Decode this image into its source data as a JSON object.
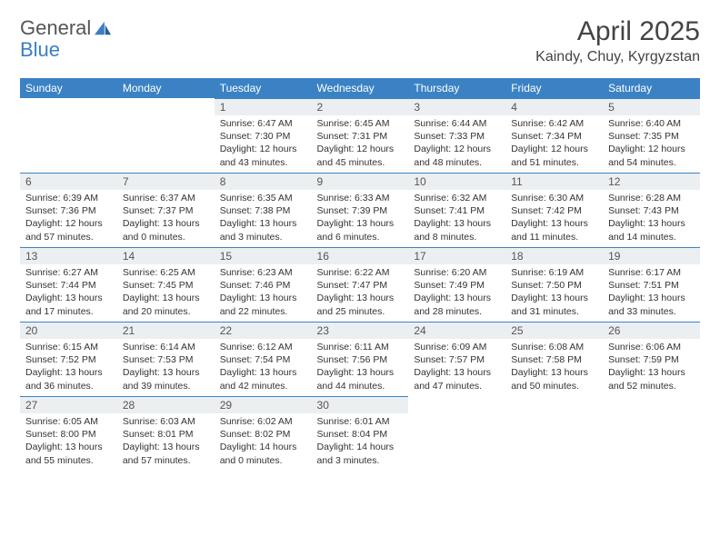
{
  "logo": {
    "part1": "General",
    "part2": "Blue"
  },
  "title": "April 2025",
  "location": "Kaindy, Chuy, Kyrgyzstan",
  "colors": {
    "header_bg": "#3b82c4",
    "daynum_bg": "#eceff1",
    "logo_blue": "#3b7fc4",
    "logo_grey": "#555555",
    "text": "#333333"
  },
  "weekdays": [
    "Sunday",
    "Monday",
    "Tuesday",
    "Wednesday",
    "Thursday",
    "Friday",
    "Saturday"
  ],
  "weeks": [
    [
      null,
      null,
      {
        "n": "1",
        "sr": "Sunrise: 6:47 AM",
        "ss": "Sunset: 7:30 PM",
        "dl": "Daylight: 12 hours and 43 minutes."
      },
      {
        "n": "2",
        "sr": "Sunrise: 6:45 AM",
        "ss": "Sunset: 7:31 PM",
        "dl": "Daylight: 12 hours and 45 minutes."
      },
      {
        "n": "3",
        "sr": "Sunrise: 6:44 AM",
        "ss": "Sunset: 7:33 PM",
        "dl": "Daylight: 12 hours and 48 minutes."
      },
      {
        "n": "4",
        "sr": "Sunrise: 6:42 AM",
        "ss": "Sunset: 7:34 PM",
        "dl": "Daylight: 12 hours and 51 minutes."
      },
      {
        "n": "5",
        "sr": "Sunrise: 6:40 AM",
        "ss": "Sunset: 7:35 PM",
        "dl": "Daylight: 12 hours and 54 minutes."
      }
    ],
    [
      {
        "n": "6",
        "sr": "Sunrise: 6:39 AM",
        "ss": "Sunset: 7:36 PM",
        "dl": "Daylight: 12 hours and 57 minutes."
      },
      {
        "n": "7",
        "sr": "Sunrise: 6:37 AM",
        "ss": "Sunset: 7:37 PM",
        "dl": "Daylight: 13 hours and 0 minutes."
      },
      {
        "n": "8",
        "sr": "Sunrise: 6:35 AM",
        "ss": "Sunset: 7:38 PM",
        "dl": "Daylight: 13 hours and 3 minutes."
      },
      {
        "n": "9",
        "sr": "Sunrise: 6:33 AM",
        "ss": "Sunset: 7:39 PM",
        "dl": "Daylight: 13 hours and 6 minutes."
      },
      {
        "n": "10",
        "sr": "Sunrise: 6:32 AM",
        "ss": "Sunset: 7:41 PM",
        "dl": "Daylight: 13 hours and 8 minutes."
      },
      {
        "n": "11",
        "sr": "Sunrise: 6:30 AM",
        "ss": "Sunset: 7:42 PM",
        "dl": "Daylight: 13 hours and 11 minutes."
      },
      {
        "n": "12",
        "sr": "Sunrise: 6:28 AM",
        "ss": "Sunset: 7:43 PM",
        "dl": "Daylight: 13 hours and 14 minutes."
      }
    ],
    [
      {
        "n": "13",
        "sr": "Sunrise: 6:27 AM",
        "ss": "Sunset: 7:44 PM",
        "dl": "Daylight: 13 hours and 17 minutes."
      },
      {
        "n": "14",
        "sr": "Sunrise: 6:25 AM",
        "ss": "Sunset: 7:45 PM",
        "dl": "Daylight: 13 hours and 20 minutes."
      },
      {
        "n": "15",
        "sr": "Sunrise: 6:23 AM",
        "ss": "Sunset: 7:46 PM",
        "dl": "Daylight: 13 hours and 22 minutes."
      },
      {
        "n": "16",
        "sr": "Sunrise: 6:22 AM",
        "ss": "Sunset: 7:47 PM",
        "dl": "Daylight: 13 hours and 25 minutes."
      },
      {
        "n": "17",
        "sr": "Sunrise: 6:20 AM",
        "ss": "Sunset: 7:49 PM",
        "dl": "Daylight: 13 hours and 28 minutes."
      },
      {
        "n": "18",
        "sr": "Sunrise: 6:19 AM",
        "ss": "Sunset: 7:50 PM",
        "dl": "Daylight: 13 hours and 31 minutes."
      },
      {
        "n": "19",
        "sr": "Sunrise: 6:17 AM",
        "ss": "Sunset: 7:51 PM",
        "dl": "Daylight: 13 hours and 33 minutes."
      }
    ],
    [
      {
        "n": "20",
        "sr": "Sunrise: 6:15 AM",
        "ss": "Sunset: 7:52 PM",
        "dl": "Daylight: 13 hours and 36 minutes."
      },
      {
        "n": "21",
        "sr": "Sunrise: 6:14 AM",
        "ss": "Sunset: 7:53 PM",
        "dl": "Daylight: 13 hours and 39 minutes."
      },
      {
        "n": "22",
        "sr": "Sunrise: 6:12 AM",
        "ss": "Sunset: 7:54 PM",
        "dl": "Daylight: 13 hours and 42 minutes."
      },
      {
        "n": "23",
        "sr": "Sunrise: 6:11 AM",
        "ss": "Sunset: 7:56 PM",
        "dl": "Daylight: 13 hours and 44 minutes."
      },
      {
        "n": "24",
        "sr": "Sunrise: 6:09 AM",
        "ss": "Sunset: 7:57 PM",
        "dl": "Daylight: 13 hours and 47 minutes."
      },
      {
        "n": "25",
        "sr": "Sunrise: 6:08 AM",
        "ss": "Sunset: 7:58 PM",
        "dl": "Daylight: 13 hours and 50 minutes."
      },
      {
        "n": "26",
        "sr": "Sunrise: 6:06 AM",
        "ss": "Sunset: 7:59 PM",
        "dl": "Daylight: 13 hours and 52 minutes."
      }
    ],
    [
      {
        "n": "27",
        "sr": "Sunrise: 6:05 AM",
        "ss": "Sunset: 8:00 PM",
        "dl": "Daylight: 13 hours and 55 minutes."
      },
      {
        "n": "28",
        "sr": "Sunrise: 6:03 AM",
        "ss": "Sunset: 8:01 PM",
        "dl": "Daylight: 13 hours and 57 minutes."
      },
      {
        "n": "29",
        "sr": "Sunrise: 6:02 AM",
        "ss": "Sunset: 8:02 PM",
        "dl": "Daylight: 14 hours and 0 minutes."
      },
      {
        "n": "30",
        "sr": "Sunrise: 6:01 AM",
        "ss": "Sunset: 8:04 PM",
        "dl": "Daylight: 14 hours and 3 minutes."
      },
      null,
      null,
      null
    ]
  ]
}
